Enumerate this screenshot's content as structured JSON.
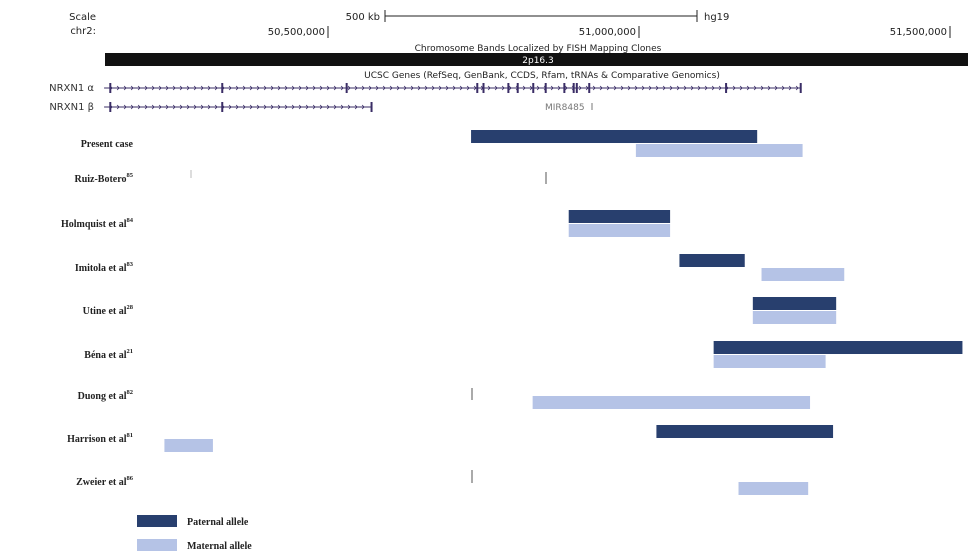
{
  "header": {
    "scale_label": "Scale",
    "chr_label": "chr2:",
    "scale_bar_label": "500 kb",
    "assembly": "hg19",
    "coord_ticks": [
      {
        "label": "50,500,000",
        "pos": 50500000
      },
      {
        "label": "51,000,000",
        "pos": 51000000
      },
      {
        "label": "51,500,000",
        "pos": 51500000
      }
    ],
    "bands_title": "Chromosome Bands Localized by FISH Mapping Clones",
    "band_label": "2p16.3",
    "genes_title": "UCSC Genes (RefSeq, GenBank, CCDS, Rfam, tRNAs & Comparative Genomics)",
    "mir_label": "MIR8485"
  },
  "genes": [
    {
      "name": "NRXN1 α",
      "start": 50140000,
      "end": 51260000,
      "exons": [
        50150000,
        50330000,
        50530000,
        50740000,
        50750000,
        50790000,
        50805000,
        50830000,
        50850000,
        50880000,
        50895000,
        50900000,
        50920000,
        51140000,
        51260000
      ]
    },
    {
      "name": "NRXN1 β",
      "start": 50140000,
      "end": 50570000,
      "exons": [
        50150000,
        50330000,
        50570000
      ]
    }
  ],
  "cases": [
    {
      "label": "Present case",
      "sup": "",
      "segments": [
        {
          "allele": "paternal",
          "start": 50730000,
          "end": 51190000
        },
        {
          "allele": "maternal",
          "start": 50995000,
          "end": 51263000
        }
      ]
    },
    {
      "label": "Ruiz-Botero",
      "sup": "85",
      "segments": []
    },
    {
      "label": "Holmquist et al",
      "sup": "84",
      "segments": [
        {
          "allele": "paternal",
          "start": 50887000,
          "end": 51050000
        },
        {
          "allele": "maternal",
          "start": 50887000,
          "end": 51050000
        }
      ]
    },
    {
      "label": "Imitola et al",
      "sup": "83",
      "segments": [
        {
          "allele": "paternal",
          "start": 51065000,
          "end": 51170000
        },
        {
          "allele": "maternal",
          "start": 51197000,
          "end": 51330000
        }
      ]
    },
    {
      "label": "Utine et al",
      "sup": "28",
      "segments": [
        {
          "allele": "paternal",
          "start": 51183000,
          "end": 51317000
        },
        {
          "allele": "maternal",
          "start": 51183000,
          "end": 51317000
        }
      ]
    },
    {
      "label": "Béna et al",
      "sup": "21",
      "segments": [
        {
          "allele": "paternal",
          "start": 51120000,
          "end": 51520000
        },
        {
          "allele": "maternal",
          "start": 51120000,
          "end": 51300000
        }
      ]
    },
    {
      "label": "Duong et al",
      "sup": "82",
      "segments": [
        {
          "allele": "maternal",
          "start": 50829000,
          "end": 51275000
        }
      ]
    },
    {
      "label": "Harrison et al",
      "sup": "81",
      "segments": [
        {
          "allele": "maternal",
          "start": 50237000,
          "end": 50315000
        },
        {
          "allele": "paternal",
          "start": 51028000,
          "end": 51312000
        }
      ]
    },
    {
      "label": "Zweier et al",
      "sup": "86",
      "segments": [
        {
          "allele": "maternal",
          "start": 51160000,
          "end": 51272000
        }
      ]
    }
  ],
  "legend": [
    {
      "allele": "paternal",
      "label": "Paternal allele"
    },
    {
      "allele": "maternal",
      "label": "Maternal allele"
    }
  ],
  "colors": {
    "paternal": "#283f6e",
    "maternal": "#b5c3e6",
    "gene": "#3a2d66",
    "band": "#111111",
    "gray": "#555555"
  }
}
